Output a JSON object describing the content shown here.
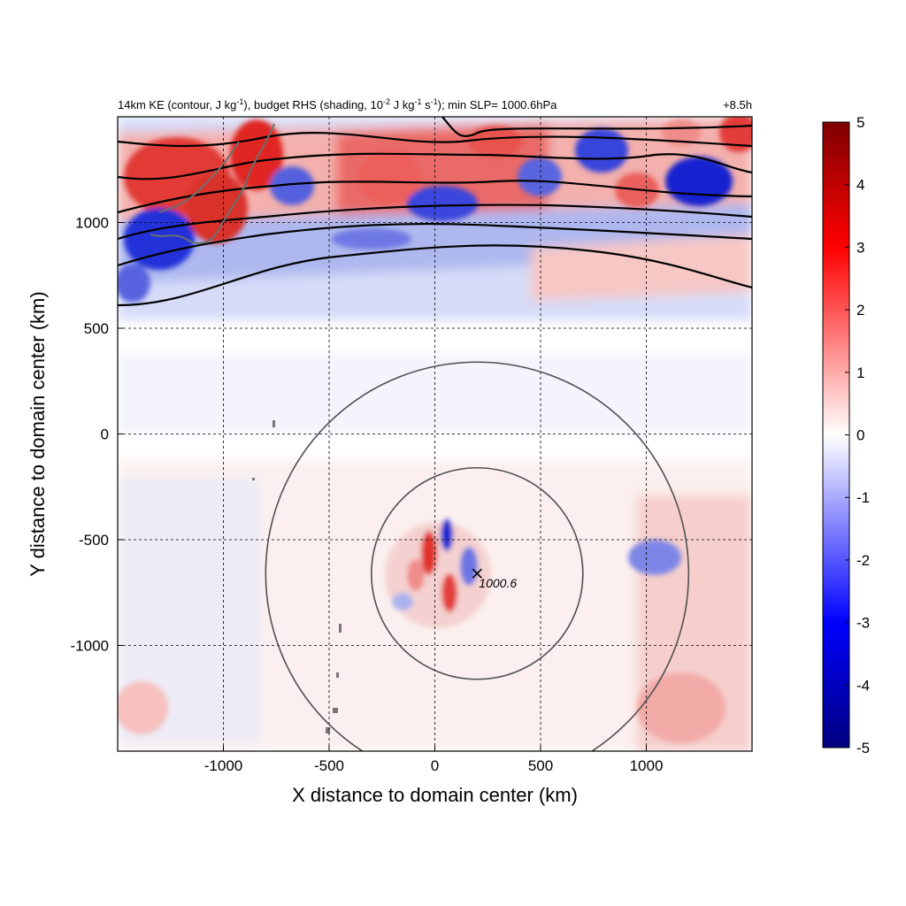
{
  "title": {
    "main": "14km KE (contour, J kg",
    "sup1": "-1",
    "mid1": "), budget RHS (shading, 10",
    "sup2": "-2",
    "mid2": " J kg",
    "sup3": "-1",
    "mid3": " s",
    "sup4": "-1",
    "end": "); min SLP= 1000.6hPa",
    "time": "+8.5h"
  },
  "chart_data": {
    "type": "heatmap",
    "xlabel": "X distance to domain center (km)",
    "ylabel": "Y distance to domain center (km)",
    "xlim": [
      -1500,
      1500
    ],
    "ylim": [
      -1500,
      1500
    ],
    "xticks": [
      -1000,
      -500,
      0,
      500,
      1000
    ],
    "yticks": [
      -1000,
      -500,
      0,
      500,
      1000
    ],
    "grid": true,
    "colorbar": {
      "range": [
        -5,
        5
      ],
      "ticks": [
        5,
        4,
        3,
        2,
        1,
        0,
        -1,
        -2,
        -3,
        -4,
        -5
      ],
      "colors": {
        "neg_max": "#00007f",
        "neg": "#0000ff",
        "zero": "#ffffff",
        "pos": "#ff0000",
        "pos_max": "#7f0000"
      }
    },
    "center": {
      "x": 200,
      "y": -660,
      "label": "1000.6",
      "min_slp_hpa": 1000.6
    },
    "radius_circles_km": [
      500,
      1000
    ]
  }
}
